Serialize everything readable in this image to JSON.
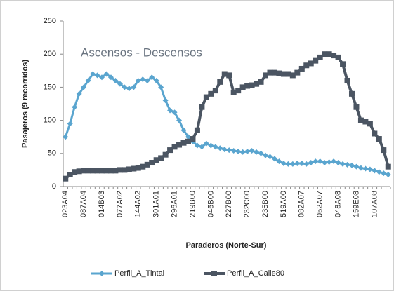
{
  "chart_data": {
    "type": "line",
    "annotation": "Ascensos - Descensos",
    "x_label": "Paraderos (Norte-Sur)",
    "y_label": "Pasajeros (9 recorridos)",
    "categories": [
      "023A04",
      null,
      null,
      null,
      "087A04",
      null,
      null,
      null,
      "014B03",
      null,
      null,
      null,
      "077A02",
      null,
      null,
      null,
      "144A02",
      null,
      null,
      null,
      "301A01",
      null,
      null,
      null,
      "296A01",
      null,
      null,
      null,
      "219B00",
      null,
      null,
      null,
      "045B00",
      null,
      null,
      null,
      "227B00",
      null,
      null,
      null,
      "232C00",
      null,
      null,
      null,
      "235B00",
      null,
      null,
      null,
      "519A00",
      null,
      null,
      null,
      "082A07",
      null,
      null,
      null,
      "052A07",
      null,
      null,
      null,
      "048A08",
      null,
      null,
      null,
      "159E08",
      null,
      null,
      null,
      "107A08",
      null,
      null,
      null
    ],
    "series": [
      {
        "name": "Perfil_A_Tintal",
        "color": "#5aa5cf",
        "marker": "diamond",
        "values": [
          75,
          95,
          120,
          140,
          150,
          160,
          170,
          168,
          165,
          170,
          165,
          160,
          155,
          150,
          148,
          150,
          160,
          162,
          160,
          165,
          160,
          150,
          130,
          115,
          112,
          100,
          85,
          75,
          68,
          62,
          60,
          65,
          62,
          60,
          58,
          56,
          55,
          54,
          53,
          52,
          53,
          54,
          52,
          50,
          47,
          45,
          42,
          38,
          35,
          34,
          34,
          35,
          35,
          34,
          36,
          38,
          38,
          36,
          37,
          38,
          36,
          34,
          33,
          32,
          30,
          28,
          27,
          26,
          24,
          22,
          20,
          18
        ]
      },
      {
        "name": "Perfil_A_Calle80",
        "color": "#4b5562",
        "marker": "square",
        "values": [
          12,
          18,
          22,
          23,
          24,
          24,
          24,
          24,
          24,
          24,
          24,
          24,
          25,
          25,
          26,
          27,
          28,
          30,
          33,
          36,
          40,
          43,
          48,
          55,
          60,
          63,
          66,
          68,
          72,
          85,
          120,
          135,
          140,
          145,
          158,
          170,
          168,
          142,
          145,
          150,
          152,
          153,
          155,
          158,
          168,
          172,
          172,
          171,
          170,
          170,
          168,
          172,
          178,
          183,
          186,
          190,
          195,
          200,
          200,
          198,
          195,
          185,
          160,
          140,
          120,
          100,
          98,
          95,
          80,
          72,
          55,
          30
        ]
      }
    ],
    "ylim": [
      0,
      250
    ],
    "yticks": [
      0,
      50,
      100,
      150,
      200,
      250
    ]
  }
}
